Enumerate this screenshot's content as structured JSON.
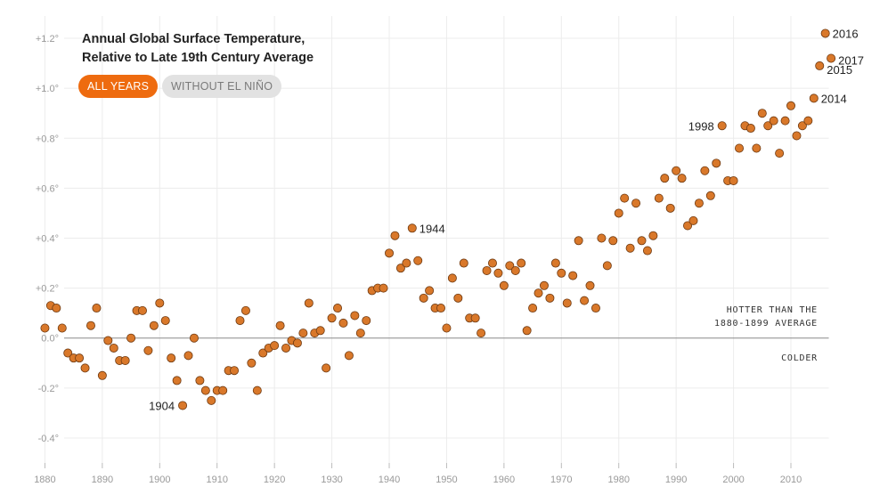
{
  "chart_data": {
    "type": "scatter",
    "title_lines": [
      "Annual Global Surface Temperature,",
      "Relative to Late 19th Century Average"
    ],
    "xlim": [
      1879,
      2019
    ],
    "ylim": [
      -0.5,
      1.3
    ],
    "x_ticks": [
      "1880",
      "1890",
      "1900",
      "1910",
      "1920",
      "1930",
      "1940",
      "1950",
      "1960",
      "1970",
      "1980",
      "1990",
      "2000",
      "2010"
    ],
    "y_ticks": [
      {
        "value": 1.2,
        "label": "+1.2°"
      },
      {
        "value": 1.0,
        "label": "+1.0°"
      },
      {
        "value": 0.8,
        "label": "+0.8°"
      },
      {
        "value": 0.6,
        "label": "+0.6°"
      },
      {
        "value": 0.4,
        "label": "+0.4°"
      },
      {
        "value": 0.2,
        "label": "+0.2°"
      },
      {
        "value": 0.0,
        "label": "0.0°"
      },
      {
        "value": -0.2,
        "label": "-0.2°"
      },
      {
        "value": -0.4,
        "label": "-0.4°"
      }
    ],
    "reference_line": {
      "value": 0.0
    },
    "hotter_label": [
      "HOTTER THAN THE",
      "1880-1899 AVERAGE"
    ],
    "colder_label": "COLDER",
    "point_color": "#d9782a",
    "point_stroke": "#6e3a12",
    "series": [
      {
        "name": "All years",
        "x": [
          1880,
          1881,
          1882,
          1883,
          1884,
          1885,
          1886,
          1887,
          1888,
          1889,
          1890,
          1891,
          1892,
          1893,
          1894,
          1895,
          1896,
          1897,
          1898,
          1899,
          1900,
          1901,
          1902,
          1903,
          1904,
          1905,
          1906,
          1907,
          1908,
          1909,
          1910,
          1911,
          1912,
          1913,
          1914,
          1915,
          1916,
          1917,
          1918,
          1919,
          1920,
          1921,
          1922,
          1923,
          1924,
          1925,
          1926,
          1927,
          1928,
          1929,
          1930,
          1931,
          1932,
          1933,
          1934,
          1935,
          1936,
          1937,
          1938,
          1939,
          1940,
          1941,
          1942,
          1943,
          1944,
          1945,
          1946,
          1947,
          1948,
          1949,
          1950,
          1951,
          1952,
          1953,
          1954,
          1955,
          1956,
          1957,
          1958,
          1959,
          1960,
          1961,
          1962,
          1963,
          1964,
          1965,
          1966,
          1967,
          1968,
          1969,
          1970,
          1971,
          1972,
          1973,
          1974,
          1975,
          1976,
          1977,
          1978,
          1979,
          1980,
          1981,
          1982,
          1983,
          1984,
          1985,
          1986,
          1987,
          1988,
          1989,
          1990,
          1991,
          1992,
          1993,
          1994,
          1995,
          1996,
          1997,
          1998,
          1999,
          2000,
          2001,
          2002,
          2003,
          2004,
          2005,
          2006,
          2007,
          2008,
          2009,
          2010,
          2011,
          2012,
          2013,
          2014,
          2015,
          2016,
          2017
        ],
        "values": [
          0.04,
          0.13,
          0.12,
          0.04,
          -0.06,
          -0.08,
          -0.08,
          -0.12,
          0.05,
          0.12,
          -0.15,
          -0.01,
          -0.04,
          -0.09,
          -0.09,
          0.0,
          0.11,
          0.11,
          -0.05,
          0.05,
          0.14,
          0.07,
          -0.08,
          -0.17,
          -0.27,
          -0.07,
          0.0,
          -0.17,
          -0.21,
          -0.25,
          -0.21,
          -0.21,
          -0.13,
          -0.13,
          0.07,
          0.11,
          -0.1,
          -0.21,
          -0.06,
          -0.04,
          -0.03,
          0.05,
          -0.04,
          -0.01,
          -0.02,
          0.02,
          0.14,
          0.02,
          0.03,
          -0.12,
          0.08,
          0.12,
          0.06,
          -0.07,
          0.09,
          0.02,
          0.07,
          0.19,
          0.2,
          0.2,
          0.34,
          0.41,
          0.28,
          0.3,
          0.44,
          0.31,
          0.16,
          0.19,
          0.12,
          0.12,
          0.04,
          0.24,
          0.16,
          0.3,
          0.08,
          0.08,
          0.02,
          0.27,
          0.3,
          0.26,
          0.21,
          0.29,
          0.27,
          0.3,
          0.03,
          0.12,
          0.18,
          0.21,
          0.16,
          0.3,
          0.26,
          0.14,
          0.25,
          0.39,
          0.15,
          0.21,
          0.12,
          0.4,
          0.29,
          0.39,
          0.5,
          0.56,
          0.36,
          0.54,
          0.39,
          0.35,
          0.41,
          0.56,
          0.64,
          0.52,
          0.67,
          0.64,
          0.45,
          0.47,
          0.54,
          0.67,
          0.57,
          0.7,
          0.85,
          0.63,
          0.63,
          0.76,
          0.85,
          0.84,
          0.76,
          0.9,
          0.85,
          0.87,
          0.74,
          0.87,
          0.93,
          0.81,
          0.85,
          0.87,
          0.96,
          1.09,
          1.22,
          1.12
        ]
      }
    ],
    "annotations": [
      {
        "year": 1904,
        "text": "1904",
        "side": "left"
      },
      {
        "year": 1944,
        "text": "1944",
        "side": "right"
      },
      {
        "year": 1998,
        "text": "1998",
        "side": "left"
      },
      {
        "year": 2014,
        "text": "2014",
        "side": "right"
      },
      {
        "year": 2015,
        "text": "2015",
        "side": "right"
      },
      {
        "year": 2016,
        "text": "2016",
        "side": "right"
      },
      {
        "year": 2017,
        "text": "2017",
        "side": "right"
      }
    ]
  },
  "controls": {
    "all_years": "ALL YEARS",
    "without_el_nino": "WITHOUT EL NIÑO"
  }
}
